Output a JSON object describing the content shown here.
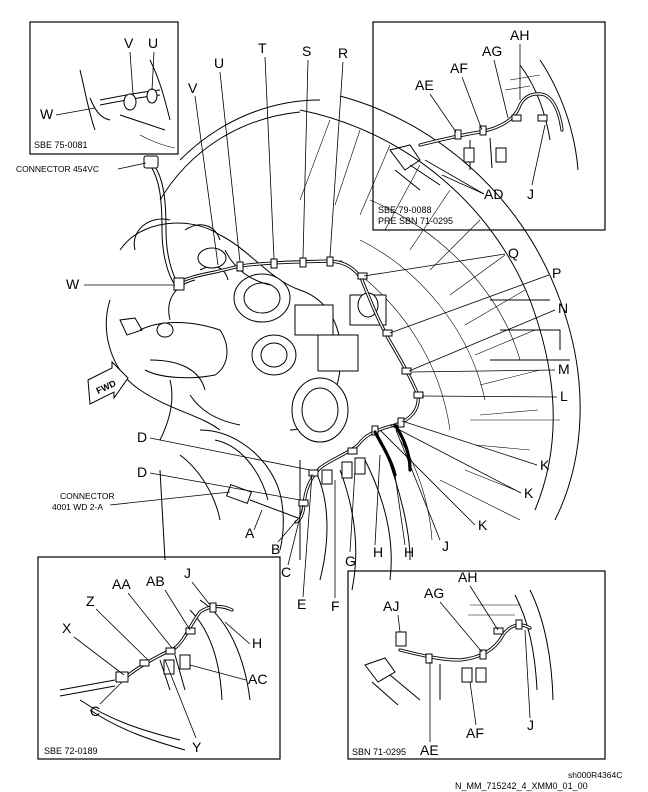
{
  "labels": {
    "V": "V",
    "U": "U",
    "T": "T",
    "S": "S",
    "R": "R",
    "Q": "Q",
    "P": "P",
    "N": "N",
    "M": "M",
    "L": "L",
    "K": "K",
    "J": "J",
    "H": "H",
    "G": "G",
    "F": "F",
    "E": "E",
    "D": "D",
    "C": "C",
    "B": "B",
    "A": "A",
    "W": "W",
    "X": "X",
    "Y": "Y",
    "Z": "Z",
    "AA": "AA",
    "AB": "AB",
    "AC": "AC",
    "AD": "AD",
    "AE": "AE",
    "AF": "AF",
    "AG": "AG",
    "AH": "AH",
    "AJ": "AJ"
  },
  "connectors": {
    "c454": "CONNECTOR 454VC",
    "c4001_line1": "CONNECTOR",
    "c4001_line2": "4001 WD 2-A"
  },
  "fwd_label": "FWD",
  "insets": {
    "top_left": {
      "ref": "SBE 75-0081"
    },
    "top_right": {
      "ref": "SBE 79-0088",
      "ref2": "PRE SBN 71-0295"
    },
    "bottom_left": {
      "ref": "SBE 72-0189"
    },
    "bottom_right": {
      "ref": "SBN 71-0295"
    }
  },
  "footer": {
    "code": "sh000R4364C",
    "figure_id": "N_MM_715242_4_XMM0_01_00"
  }
}
